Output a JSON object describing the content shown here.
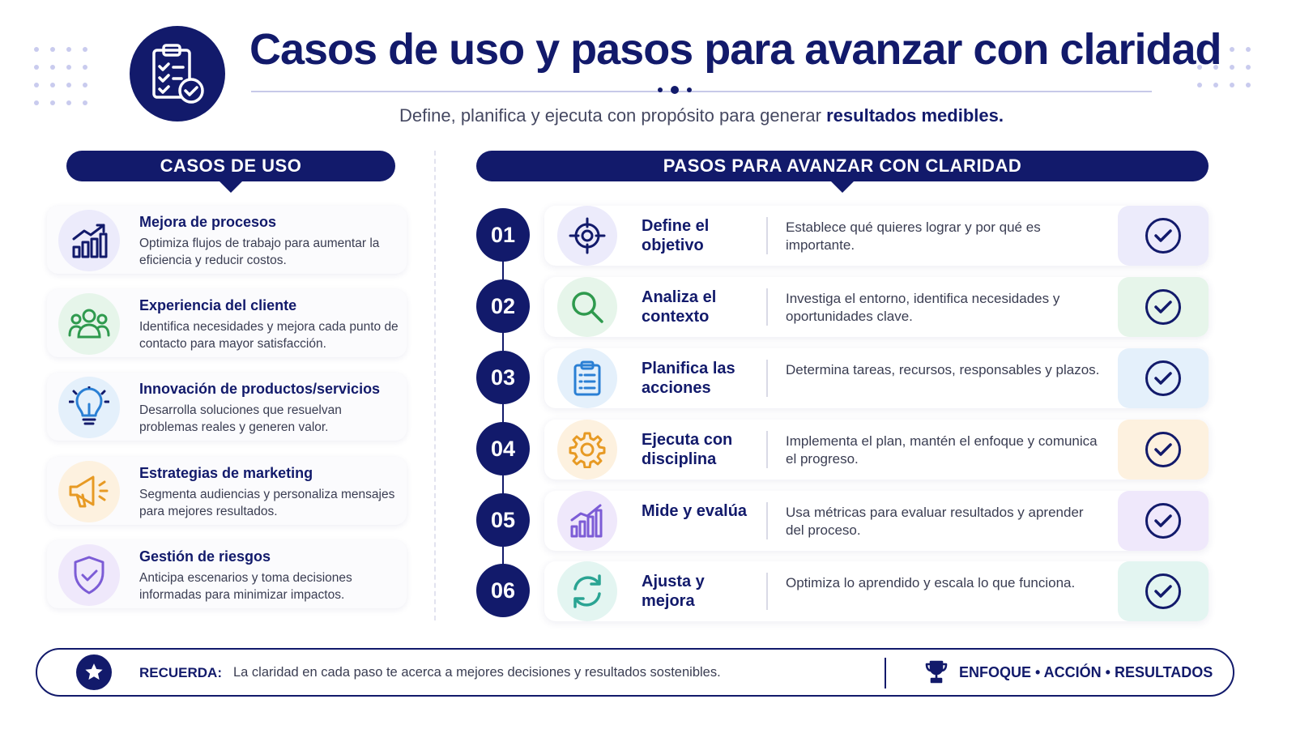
{
  "header": {
    "title": "Casos de uso y pasos para avanzar con claridad",
    "subtitle_prefix": "Define, planifica y ejecuta con propósito para generar",
    "subtitle_bold": "resultados medibles.",
    "icon": "clipboard-check-icon"
  },
  "colors": {
    "navy": "#121a6b",
    "purple": "#7c5cd6",
    "green": "#2f9a4e",
    "blue": "#2a7fd4",
    "orange": "#e79a24",
    "teal": "#2aa493"
  },
  "cases_section": {
    "heading": "CASOS DE USO",
    "items": [
      {
        "title": "Mejora de procesos",
        "description": "Optimiza flujos de trabajo para aumentar la eficiencia y reducir costos.",
        "icon": "bar-chart-up-icon"
      },
      {
        "title": "Experiencia del cliente",
        "description": "Identifica necesidades y mejora cada punto de contacto para mayor satisfacción.",
        "icon": "users-group-icon"
      },
      {
        "title": "Innovación de productos/servicios",
        "description": "Desarrolla soluciones que resuelvan problemas reales y generen valor.",
        "icon": "lightbulb-icon"
      },
      {
        "title": "Estrategias de marketing",
        "description": "Segmenta audiencias y personaliza mensajes para mejores resultados.",
        "icon": "megaphone-icon"
      },
      {
        "title": "Gestión de riesgos",
        "description": "Anticipa escenarios y toma decisiones informadas para minimizar impactos.",
        "icon": "shield-check-icon"
      }
    ]
  },
  "steps_section": {
    "heading": "PASOS PARA AVANZAR CON CLARIDAD",
    "steps": [
      {
        "number": "01",
        "title": "Define el objetivo",
        "description": "Establece qué quieres lograr y por qué es importante.",
        "icon": "target-icon"
      },
      {
        "number": "02",
        "title": "Analiza el contexto",
        "description": "Investiga el entorno, identifica necesidades y oportunidades clave.",
        "icon": "magnifier-icon"
      },
      {
        "number": "03",
        "title": "Planifica las acciones",
        "description": "Determina tareas, recursos, responsables y plazos.",
        "icon": "clipboard-list-icon"
      },
      {
        "number": "04",
        "title": "Ejecuta con disciplina",
        "description": "Implementa el plan, mantén el enfoque y comunica el progreso.",
        "icon": "gear-icon"
      },
      {
        "number": "05",
        "title": "Mide y evalúa",
        "description": "Usa métricas para evaluar resultados y aprender del proceso.",
        "icon": "bar-chart-icon"
      },
      {
        "number": "06",
        "title": "Ajusta y mejora",
        "description": "Optimiza lo aprendido y escala lo que funciona.",
        "icon": "refresh-icon"
      }
    ]
  },
  "footer": {
    "label": "RECUERDA:",
    "text": "La claridad en cada paso te acerca a mejores decisiones y resultados sostenibles.",
    "motto": "ENFOQUE • ACCIÓN • RESULTADOS",
    "star_icon": "star-icon",
    "trophy_icon": "trophy-icon"
  }
}
